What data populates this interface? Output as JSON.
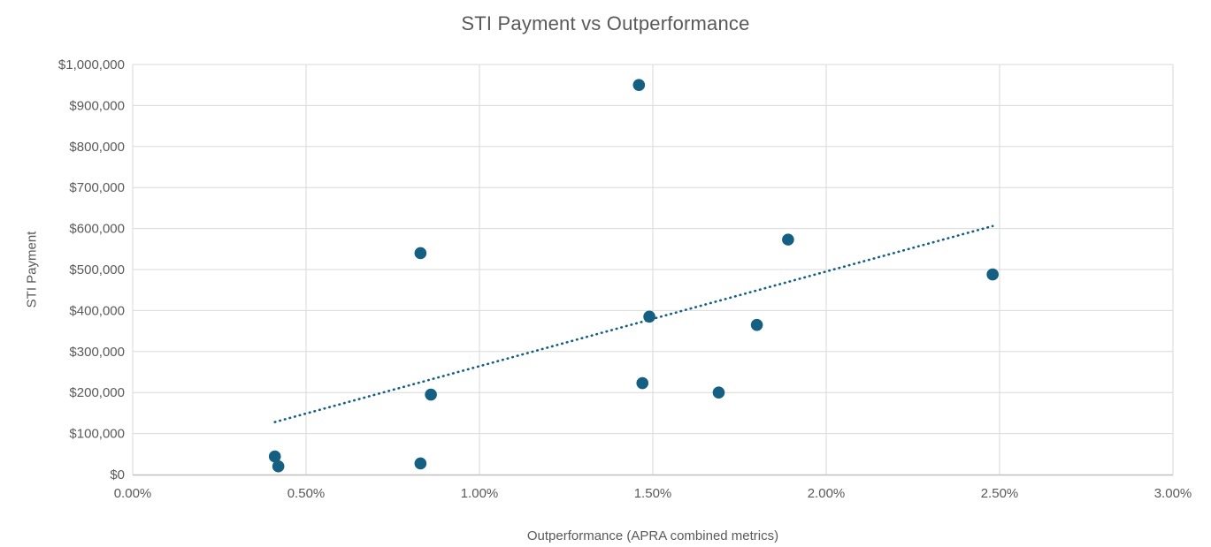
{
  "chart_data": {
    "type": "scatter",
    "title": "STI Payment vs Outperformance",
    "xlabel": "Outperformance (APRA combined metrics)",
    "ylabel": "STI Payment",
    "xlim": [
      0.0,
      3.0
    ],
    "ylim": [
      0,
      1000000
    ],
    "grid": true,
    "legend": false,
    "x_unit": "percent",
    "y_unit": "USD",
    "x_ticks": [
      {
        "value": 0.0,
        "label": "0.00%"
      },
      {
        "value": 0.5,
        "label": "0.50%"
      },
      {
        "value": 1.0,
        "label": "1.00%"
      },
      {
        "value": 1.5,
        "label": "1.50%"
      },
      {
        "value": 2.0,
        "label": "2.00%"
      },
      {
        "value": 2.5,
        "label": "2.50%"
      },
      {
        "value": 3.0,
        "label": "3.00%"
      }
    ],
    "y_ticks": [
      {
        "value": 0,
        "label": "$0"
      },
      {
        "value": 100000,
        "label": "$100,000"
      },
      {
        "value": 200000,
        "label": "$200,000"
      },
      {
        "value": 300000,
        "label": "$300,000"
      },
      {
        "value": 400000,
        "label": "$400,000"
      },
      {
        "value": 500000,
        "label": "$500,000"
      },
      {
        "value": 600000,
        "label": "$600,000"
      },
      {
        "value": 700000,
        "label": "$700,000"
      },
      {
        "value": 800000,
        "label": "$800,000"
      },
      {
        "value": 900000,
        "label": "$900,000"
      },
      {
        "value": 1000000,
        "label": "$1,000,000"
      }
    ],
    "points": [
      {
        "x": 0.41,
        "y": 44000
      },
      {
        "x": 0.42,
        "y": 20000
      },
      {
        "x": 0.83,
        "y": 27000
      },
      {
        "x": 0.83,
        "y": 540000
      },
      {
        "x": 0.86,
        "y": 195000
      },
      {
        "x": 1.46,
        "y": 950000
      },
      {
        "x": 1.47,
        "y": 223000
      },
      {
        "x": 1.49,
        "y": 385000
      },
      {
        "x": 1.69,
        "y": 200000
      },
      {
        "x": 1.8,
        "y": 365000
      },
      {
        "x": 1.89,
        "y": 573000
      },
      {
        "x": 2.48,
        "y": 488000
      }
    ],
    "trendline": {
      "style": "dotted",
      "x1": 0.41,
      "y1": 128000,
      "x2": 2.48,
      "y2": 606000
    },
    "colors": {
      "marker": "#156082",
      "trendline": "#156082",
      "gridline": "#D9D9D9",
      "axis_line": "#BFBFBF",
      "text": "#595959"
    }
  }
}
